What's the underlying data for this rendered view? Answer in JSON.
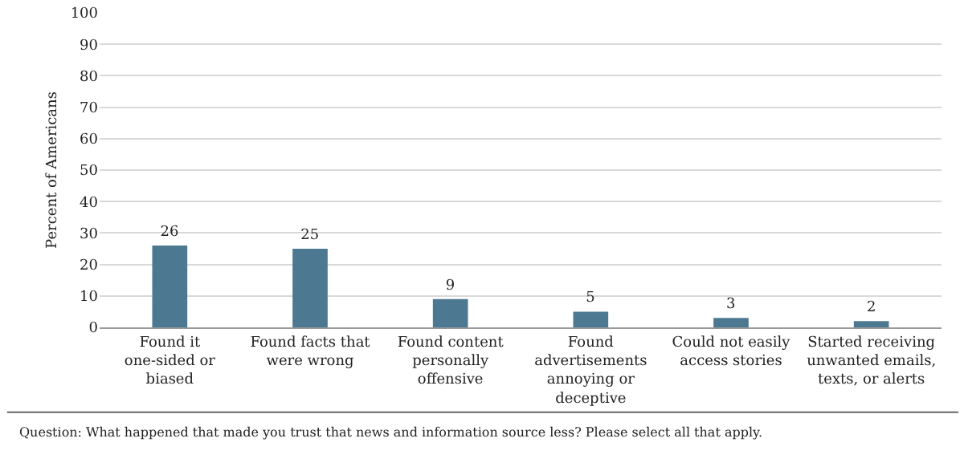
{
  "chart_data": {
    "type": "bar",
    "ylabel": "Percent of Americans",
    "categories": [
      "Found it one-sided or biased",
      "Found facts that were wrong",
      "Found content personally offensive",
      "Found advertisements annoying or deceptive",
      "Could not easily access stories",
      "Started receiving unwanted emails, texts, or alerts"
    ],
    "values": [
      26,
      25,
      9,
      5,
      3,
      2
    ],
    "color": "#4d7891",
    "ylim": [
      0,
      100
    ],
    "yticks": [
      0,
      10,
      20,
      30,
      40,
      50,
      60,
      70,
      80,
      90,
      100
    ],
    "grid": "y",
    "data_labels": true,
    "annotations": [
      "Question: What happened that made you trust that news and information source less? Please select all that apply."
    ]
  }
}
